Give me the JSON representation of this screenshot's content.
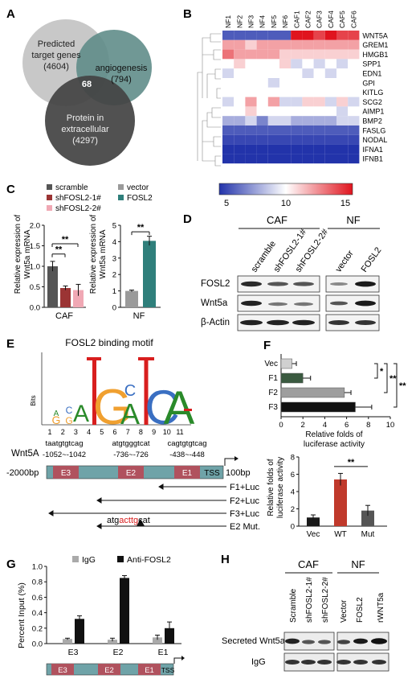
{
  "panels": {
    "A": {
      "letter": "A",
      "predicted": {
        "line1": "Predicted",
        "line2": "target genes",
        "count": "(4604)"
      },
      "angiogenesis": {
        "label": "angiogenesis",
        "count": "(794)"
      },
      "protein": {
        "line1": "Protein in",
        "line2": "extracellular",
        "count": "(4297)"
      },
      "overlap": "68"
    },
    "B": {
      "letter": "B",
      "samples": [
        "NF1",
        "NF2",
        "NF3",
        "NF4",
        "NF5",
        "NF6",
        "CAF1",
        "CAF2",
        "CAF3",
        "CAF4",
        "CAF5",
        "CAF6"
      ],
      "genes": [
        "WNT5A",
        "GREM1",
        "HMGB1",
        "SPP1",
        "EDN1",
        "GPI",
        "KITLG",
        "SCG2",
        "AIMP1",
        "BMP2",
        "FASLG",
        "NODAL",
        "IFNA1",
        "IFNB1"
      ],
      "values": [
        [
          6,
          6,
          6,
          6,
          6,
          6,
          15,
          15,
          14,
          15,
          14,
          14
        ],
        [
          12,
          12,
          11,
          12,
          12,
          12,
          12,
          12,
          12,
          12,
          12,
          12
        ],
        [
          13,
          12,
          12,
          12,
          12,
          11,
          11,
          11,
          11,
          11,
          11,
          11
        ],
        [
          10,
          11,
          10,
          10,
          10,
          11,
          9,
          10,
          9,
          10,
          9,
          10
        ],
        [
          9,
          10,
          10,
          10,
          10,
          10,
          10,
          9,
          10,
          9,
          10,
          10
        ],
        [
          10,
          10,
          10,
          10,
          9,
          10,
          10,
          10,
          10,
          10,
          10,
          10
        ],
        [
          10,
          10,
          10,
          10,
          10,
          10,
          10,
          10,
          10,
          10,
          10,
          10
        ],
        [
          9,
          10,
          12,
          10,
          12,
          9,
          9,
          11,
          11,
          9,
          11,
          9
        ],
        [
          10,
          10,
          11,
          10,
          10,
          10,
          10,
          10,
          10,
          10,
          9,
          10
        ],
        [
          8,
          8,
          9,
          7,
          9,
          9,
          8,
          8,
          8,
          8,
          9,
          9
        ],
        [
          6,
          6,
          6,
          6,
          6,
          6,
          6,
          6,
          6,
          6,
          6,
          6
        ],
        [
          5.5,
          5.5,
          5.5,
          5.5,
          5.5,
          5.5,
          5.5,
          5.5,
          5.5,
          5.5,
          5.5,
          5.5
        ],
        [
          5,
          5,
          5,
          5,
          5,
          5,
          5,
          5,
          5,
          5,
          5,
          5
        ],
        [
          5,
          5,
          5,
          5,
          5,
          5,
          5,
          5,
          5,
          5,
          5,
          5
        ]
      ],
      "scale": {
        "min": 5,
        "max": 15,
        "ticks": [
          "5",
          "10",
          "15"
        ]
      }
    },
    "C": {
      "letter": "C",
      "left": {
        "ylabel1": "Relative expression of",
        "ylabel2": "Wnt5a mRNA",
        "yticks": [
          "0.0",
          "0.5",
          "1.0",
          "1.5",
          "2.0"
        ],
        "xlabel": "CAF",
        "legend": [
          "scramble",
          "shFOSL2-1#",
          "shFOSL2-2#"
        ],
        "sig": "**"
      },
      "right": {
        "ylabel1": "Relative expression of",
        "ylabel2": "Wnt5a mRNA",
        "yticks": [
          "0",
          "1",
          "2",
          "3",
          "4",
          "5"
        ],
        "xlabel": "NF",
        "legend": [
          "vector",
          "FOSL2"
        ],
        "sig": "**"
      }
    },
    "D": {
      "letter": "D",
      "group_caf": "CAF",
      "group_nf": "NF",
      "lanes": [
        "scramble",
        "shFOSL2-1#",
        "shFOSL2-2#",
        "vector",
        "FOSL2"
      ],
      "rows": [
        "FOSL2",
        "Wnt5a",
        "β-Actin"
      ]
    },
    "E": {
      "letter": "E",
      "motif_title": "FOSL2 binding motif",
      "bits_label": "Bits",
      "positions": [
        "1",
        "2",
        "3",
        "4",
        "5",
        "6",
        "7",
        "8",
        "9",
        "10",
        "11"
      ],
      "gene": "Wnt5A",
      "start": "-2000bp",
      "end": "100bp",
      "tss": "TSS",
      "sites": [
        {
          "seq": "taatgtgtcag",
          "range": "-1052~-1042",
          "box": "E3"
        },
        {
          "seq": "atgtgggtcat",
          "range": "-736~-726",
          "box": "E2"
        },
        {
          "seq": "cagtgtgtcag",
          "range": "-438~-448",
          "box": "E1"
        }
      ],
      "constructs": [
        "F1+Luc",
        "F2+Luc",
        "F3+Luc",
        "E2  Mut."
      ],
      "mut_seq": {
        "pre": "atg",
        "mut": "acttg",
        "post": "cat"
      }
    },
    "F": {
      "letter": "F",
      "top": {
        "labels": [
          "Vec",
          "F1",
          "F2",
          "F3"
        ],
        "xticks": [
          "0",
          "2",
          "4",
          "6",
          "8",
          "10"
        ],
        "xlabel1": "Relative folds of",
        "xlabel2": "luciferase activity",
        "sig1": "*",
        "sig2": "**",
        "sig3": "**"
      },
      "bottom": {
        "ylabel1": "Relative folds of",
        "ylabel2": "luciferase activity",
        "yticks": [
          "0",
          "2",
          "4",
          "6",
          "8"
        ],
        "labels": [
          "Vec",
          "WT",
          "Mut"
        ],
        "sig": "**"
      }
    },
    "G": {
      "letter": "G",
      "legend": [
        "IgG",
        "Anti-FOSL2"
      ],
      "ylabel": "Percent Input (%)",
      "yticks": [
        "0.0",
        "0.2",
        "0.4",
        "0.6",
        "0.8",
        "1.0"
      ],
      "categories": [
        "E3",
        "E2",
        "E1"
      ],
      "tss": "TSS"
    },
    "H": {
      "letter": "H",
      "group_caf": "CAF",
      "group_nf": "NF",
      "lanes": [
        "Scramble",
        "shFOSL2-1#",
        "shFOSL2-2#",
        "Vector",
        "FOSL2",
        "rWNT5a"
      ],
      "rows": [
        "Secreted Wnt5a",
        "IgG"
      ]
    }
  },
  "chart_data": [
    {
      "type": "heatmap",
      "panel": "B",
      "columns": [
        "NF1",
        "NF2",
        "NF3",
        "NF4",
        "NF5",
        "NF6",
        "CAF1",
        "CAF2",
        "CAF3",
        "CAF4",
        "CAF5",
        "CAF6"
      ],
      "rows": [
        "WNT5A",
        "GREM1",
        "HMGB1",
        "SPP1",
        "EDN1",
        "GPI",
        "KITLG",
        "SCG2",
        "AIMP1",
        "BMP2",
        "FASLG",
        "NODAL",
        "IFNA1",
        "IFNB1"
      ],
      "color_range": [
        5,
        15
      ]
    },
    {
      "type": "bar",
      "panel": "C-left",
      "categories": [
        "scramble",
        "shFOSL2-1#",
        "shFOSL2-2#"
      ],
      "values": [
        1.0,
        0.47,
        0.42
      ],
      "errors": [
        0.12,
        0.05,
        0.14
      ],
      "colors": [
        "#555555",
        "#9b3434",
        "#f0a8b4"
      ],
      "xlabel": "CAF",
      "ylabel": "Relative expression of Wnt5a mRNA",
      "ylim": [
        0,
        2.0
      ]
    },
    {
      "type": "bar",
      "panel": "C-right",
      "categories": [
        "vector",
        "FOSL2"
      ],
      "values": [
        1.0,
        4.05
      ],
      "errors": [
        0.05,
        0.28
      ],
      "colors": [
        "#9a9a9a",
        "#2f7f7b"
      ],
      "xlabel": "NF",
      "ylabel": "Relative expression of Wnt5a mRNA",
      "ylim": [
        0,
        5
      ]
    },
    {
      "type": "bar",
      "panel": "F-top",
      "orientation": "horizontal",
      "categories": [
        "Vec",
        "F1",
        "F2",
        "F3"
      ],
      "values": [
        1.0,
        2.0,
        5.8,
        6.8
      ],
      "errors": [
        0.4,
        0.7,
        0.6,
        1.5
      ],
      "colors": [
        "#d0d0d0",
        "#3a5a40",
        "#9e9e9e",
        "#111111"
      ],
      "xlabel": "Relative folds of luciferase activity",
      "xlim": [
        0,
        10
      ]
    },
    {
      "type": "bar",
      "panel": "F-bottom",
      "categories": [
        "Vec",
        "WT",
        "Mut"
      ],
      "values": [
        1.0,
        5.4,
        1.8
      ],
      "errors": [
        0.3,
        0.7,
        0.6
      ],
      "colors": [
        "#1a1a1a",
        "#c0392b",
        "#555555"
      ],
      "ylabel": "Relative folds of luciferase activity",
      "ylim": [
        0,
        8
      ]
    },
    {
      "type": "bar",
      "panel": "G",
      "categories": [
        "E3",
        "E2",
        "E1"
      ],
      "series": [
        {
          "name": "IgG",
          "values": [
            0.06,
            0.05,
            0.08
          ],
          "errors": [
            0.01,
            0.02,
            0.03
          ],
          "color": "#aaaaaa"
        },
        {
          "name": "Anti-FOSL2",
          "values": [
            0.32,
            0.85,
            0.2
          ],
          "errors": [
            0.04,
            0.03,
            0.08
          ],
          "color": "#111111"
        }
      ],
      "ylabel": "Percent Input (%)",
      "ylim": [
        0,
        1.0
      ]
    }
  ]
}
